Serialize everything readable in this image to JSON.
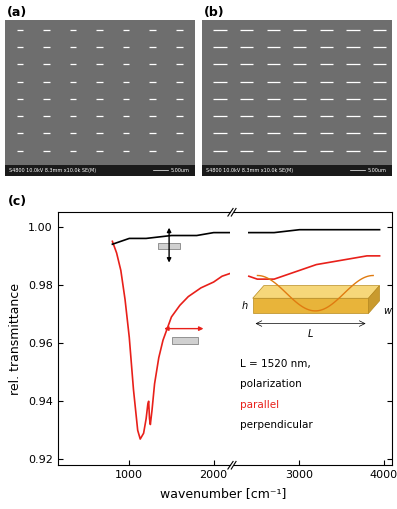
{
  "panels": [
    {
      "label": "(a)",
      "info": "S4800 10.0kV 8.3mm x10.0k SE(M)",
      "scale_bar": "5.00um"
    },
    {
      "label": "(b)",
      "info": "S4800 10.0kV 8.3mm x10.0k SE(M)",
      "scale_bar": "5.00um"
    }
  ],
  "chart_data": {
    "type": "line",
    "title": "(c)",
    "x_label": "wavenumber [cm⁻¹]",
    "y_label": "rel. transmittance",
    "xlim": [
      [
        150,
        2200
      ],
      [
        2220,
        4100
      ]
    ],
    "xticks": [
      1000,
      2000,
      3000,
      4000
    ],
    "ylim": [
      0.918,
      1.005
    ],
    "yticks": [
      0.92,
      0.94,
      0.96,
      0.98,
      {
        "value": 1.0,
        "label": "1.00"
      }
    ],
    "annotations": [
      "L = 1520 nm,",
      "polarization"
    ],
    "inset_labels": [
      "h",
      "L",
      "w"
    ],
    "series": [
      {
        "name": "parallel",
        "color": "#e8201a",
        "x": [
          800,
          850,
          900,
          950,
          1000,
          1050,
          1100,
          1130,
          1170,
          1200,
          1220,
          1230,
          1240,
          1250,
          1270,
          1300,
          1350,
          1400,
          1500,
          1600,
          1700,
          1850,
          2000,
          2100,
          2200,
          2400,
          2500,
          2600,
          2700,
          2800,
          3000,
          3200,
          3400,
          3600,
          3800,
          3950
        ],
        "values": [
          0.995,
          0.991,
          0.985,
          0.975,
          0.962,
          0.944,
          0.93,
          0.927,
          0.929,
          0.934,
          0.939,
          0.94,
          0.934,
          0.932,
          0.937,
          0.946,
          0.955,
          0.961,
          0.969,
          0.973,
          0.976,
          0.979,
          0.981,
          0.983,
          0.984,
          0.983,
          0.982,
          0.982,
          0.982,
          0.983,
          0.985,
          0.987,
          0.988,
          0.989,
          0.99,
          0.99
        ]
      },
      {
        "name": "perpendicular",
        "color": "#000000",
        "x": [
          800,
          900,
          1000,
          1200,
          1500,
          1800,
          2000,
          2200,
          2400,
          2700,
          3000,
          3500,
          3950
        ],
        "values": [
          0.994,
          0.995,
          0.996,
          0.996,
          0.997,
          0.997,
          0.998,
          0.998,
          0.998,
          0.998,
          0.999,
          0.999,
          0.999
        ]
      }
    ]
  }
}
